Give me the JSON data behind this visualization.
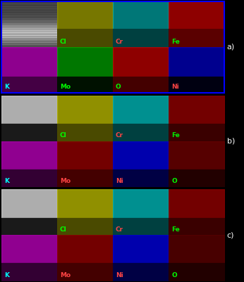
{
  "figure_width": 3.46,
  "figure_height": 4.01,
  "dpi": 100,
  "background": "#000000",
  "outer_border_color": "#0000ff",
  "groups": [
    {
      "label": "a)",
      "border_color": "#0000ff",
      "rows": [
        [
          {
            "element": "",
            "bg": "#888888",
            "text_color": "#ff0000",
            "is_sem": true
          },
          {
            "element": "Cl",
            "bg": "#808000",
            "text_color": "#00ff00"
          },
          {
            "element": "Cr",
            "bg": "#008080",
            "text_color": "#ff0000"
          },
          {
            "element": "Fe",
            "bg": "#8b0000",
            "text_color": "#00ff00"
          }
        ],
        [
          {
            "element": "K",
            "bg": "#8b008b",
            "text_color": "#00ffff"
          },
          {
            "element": "Mo",
            "bg": "#003300",
            "text_color": "#00ff00"
          },
          {
            "element": "O",
            "bg": "#8b0000",
            "text_color": "#00ff00"
          },
          {
            "element": "Ni",
            "bg": "#000033",
            "text_color": "#ff0000"
          }
        ]
      ]
    },
    {
      "label": "b)",
      "border_color": "#000000",
      "rows": [
        [
          {
            "element": "",
            "bg": "#888888",
            "text_color": "#ff0000",
            "is_sem": true
          },
          {
            "element": "Cl",
            "bg": "#808000",
            "text_color": "#00ff00"
          },
          {
            "element": "Cr",
            "bg": "#008080",
            "text_color": "#ff0000"
          },
          {
            "element": "Fe",
            "bg": "#8b0000",
            "text_color": "#00ff00"
          }
        ],
        [
          {
            "element": "K",
            "bg": "#800080",
            "text_color": "#00ffff"
          },
          {
            "element": "Mo",
            "bg": "#8b0000",
            "text_color": "#ff0000"
          },
          {
            "element": "Ni",
            "bg": "#000080",
            "text_color": "#ff0000"
          },
          {
            "element": "O",
            "bg": "#4a0000",
            "text_color": "#00ff00"
          }
        ]
      ]
    },
    {
      "label": "c)",
      "border_color": "#000000",
      "rows": [
        [
          {
            "element": "",
            "bg": "#888888",
            "text_color": "#ff0000",
            "is_sem": true
          },
          {
            "element": "Cl",
            "bg": "#808000",
            "text_color": "#00ff00"
          },
          {
            "element": "Cr",
            "bg": "#008080",
            "text_color": "#ff0000"
          },
          {
            "element": "Fe",
            "bg": "#8b0000",
            "text_color": "#00ff00"
          }
        ],
        [
          {
            "element": "K",
            "bg": "#800080",
            "text_color": "#00ffff"
          },
          {
            "element": "Mo",
            "bg": "#8b0000",
            "text_color": "#ff0000"
          },
          {
            "element": "Ni",
            "bg": "#000080",
            "text_color": "#ff0000"
          },
          {
            "element": "O",
            "bg": "#4a0000",
            "text_color": "#00ff00"
          }
        ]
      ]
    }
  ],
  "panel_colors_a_r1": [
    "#555555",
    "#6b6b00",
    "#006060",
    "#660000"
  ],
  "panel_colors_a_r2": [
    "#660066",
    "#002200",
    "#660000",
    "#000022"
  ],
  "panel_colors_b_r1": [
    "#555555",
    "#6b6b00",
    "#006060",
    "#660000"
  ],
  "panel_colors_b_r2": [
    "#550055",
    "#660000",
    "#000066",
    "#330000"
  ],
  "panel_colors_c_r1": [
    "#555555",
    "#6b6b00",
    "#006060",
    "#660000"
  ],
  "panel_colors_c_r2": [
    "#550055",
    "#660000",
    "#000066",
    "#330000"
  ],
  "label_fontsize": 6.5,
  "label_color": "#ffffff",
  "group_label_fontsize": 8,
  "group_label_color": "#000000"
}
